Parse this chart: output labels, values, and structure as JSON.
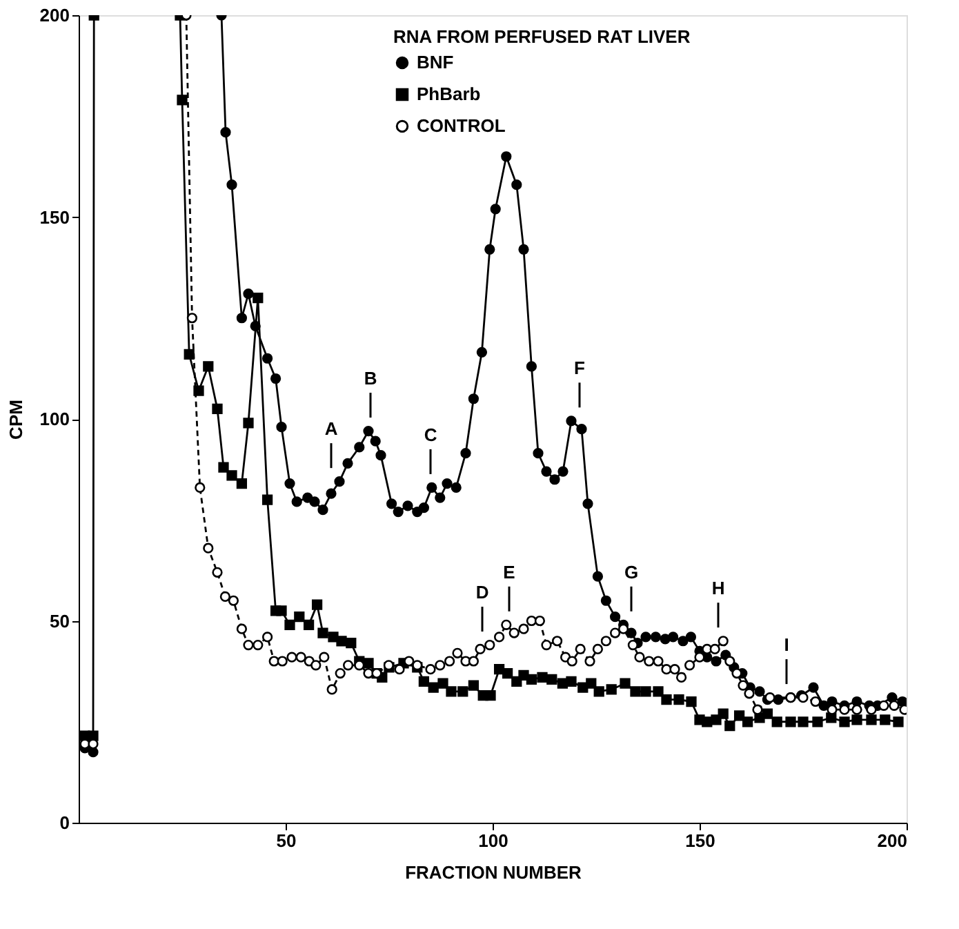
{
  "chart_data": {
    "type": "line",
    "xlabel": "FRACTION NUMBER",
    "ylabel": "CPM",
    "legend_title": "RNA FROM PERFUSED RAT LIVER",
    "legend": "top",
    "grid": false,
    "xlim": [
      0,
      200
    ],
    "xticks": [
      50,
      100,
      150,
      200
    ],
    "ylim": [
      0,
      200
    ],
    "yticks": [
      0,
      50,
      100,
      150,
      200
    ],
    "series": [
      {
        "name": "BNF",
        "color": "#000000",
        "marker": "circle",
        "line_style": "solid",
        "x": [
          1.5,
          3.5,
          20,
          34.5,
          35.5,
          37,
          39.4,
          41,
          42.7,
          45.6,
          47.6,
          49,
          51,
          52.7,
          55.3,
          57,
          59,
          61,
          63,
          65,
          67.8,
          70,
          71.7,
          73,
          75.6,
          77.2,
          79.5,
          81.8,
          83.4,
          85.3,
          87.3,
          89,
          91.2,
          93.5,
          95.4,
          97.4,
          99.3,
          100.7,
          103.3,
          105.8,
          107.5,
          109.4,
          111,
          113,
          115,
          117,
          119,
          121.5,
          123,
          125.4,
          127.4,
          129.6,
          131.6,
          133.5,
          135,
          137,
          139.4,
          141.7,
          143.6,
          146,
          147.9,
          150,
          151.8,
          154,
          156.3,
          158.3,
          160.3,
          162.2,
          164.5,
          166.4,
          169,
          172,
          174.6,
          177.5,
          180,
          182,
          185,
          188,
          191,
          193,
          196.5,
          199
        ],
        "values": [
          18.5,
          17.5,
          null,
          200,
          171,
          158,
          125,
          131,
          123,
          115,
          110,
          98,
          84,
          79.5,
          80.5,
          79.5,
          77.5,
          81.5,
          84.5,
          89,
          93,
          97,
          94.5,
          91,
          79,
          77,
          78.5,
          77,
          78,
          83,
          80.5,
          84,
          83,
          91.5,
          105,
          116.5,
          142,
          152,
          165,
          158,
          142,
          113,
          91.5,
          87,
          85,
          87,
          99.5,
          97.5,
          79,
          61,
          55,
          51,
          49,
          47,
          44.5,
          46,
          46,
          45.5,
          46,
          45,
          46,
          42.5,
          41,
          40,
          41.5,
          38.5,
          37,
          33.5,
          32.5,
          30.5,
          30.5,
          31,
          31.5,
          33.5,
          29,
          30,
          29,
          30,
          29,
          29,
          31,
          30
        ]
      },
      {
        "name": "PhBarb",
        "color": "#000000",
        "marker": "square",
        "line_style": "solid",
        "x": [
          1.5,
          3.5,
          3.7,
          14,
          24.5,
          25,
          26.7,
          29,
          31.3,
          33.5,
          35,
          37,
          39.4,
          41,
          43.3,
          45.6,
          47.6,
          49,
          51,
          53.3,
          55.6,
          57.6,
          59,
          61.5,
          63.5,
          65.8,
          67.8,
          70,
          72,
          73.3,
          75,
          78.5,
          81.8,
          83.4,
          85.7,
          88,
          90,
          92.8,
          95.4,
          97.7,
          99.5,
          101.6,
          103.6,
          105.8,
          107.5,
          109.4,
          112,
          114.3,
          116.9,
          119,
          121.8,
          123.8,
          125.7,
          128.7,
          132,
          134.5,
          137,
          140,
          142,
          145,
          148,
          150,
          151.8,
          154,
          155.7,
          157.3,
          159.6,
          161.6,
          164.5,
          166.4,
          168.7,
          172,
          175,
          178.5,
          181.8,
          185,
          188,
          191.5,
          194.8,
          198
        ],
        "values": [
          21.5,
          21.5,
          200,
          null,
          200,
          179,
          116,
          107,
          113,
          102.5,
          88,
          86,
          84,
          99,
          130,
          80,
          52.5,
          52.5,
          49,
          51,
          49,
          54,
          47,
          46,
          45,
          44.5,
          40,
          39.5,
          37,
          36,
          38.5,
          39.5,
          38.5,
          35,
          33.5,
          34.5,
          32.5,
          32.5,
          34,
          31.5,
          31.5,
          38,
          37,
          35,
          36.5,
          35.5,
          36,
          35.5,
          34.5,
          35,
          33.5,
          34.5,
          32.5,
          33,
          34.5,
          32.5,
          32.5,
          32.5,
          30.5,
          30.5,
          30,
          25.5,
          25,
          25.5,
          27,
          24,
          26.5,
          25,
          26,
          27,
          25,
          25,
          25,
          25,
          26,
          25,
          25.5,
          25.5,
          25.5,
          25
        ]
      },
      {
        "name": "CONTROL",
        "color": "#000000",
        "marker": "circle",
        "line_style": "dashed",
        "x": [
          1.5,
          3.5,
          15,
          26,
          27.4,
          29.3,
          31.3,
          33.5,
          35.4,
          37.4,
          39.4,
          41,
          43.3,
          45.6,
          47.2,
          49.2,
          51.5,
          53.7,
          55.7,
          57.3,
          59.3,
          61.2,
          63.2,
          65.1,
          67.8,
          70,
          72,
          74.9,
          77.5,
          79.8,
          81.8,
          85,
          87.3,
          89.6,
          91.5,
          93.5,
          95.4,
          97,
          99.3,
          101.6,
          103.3,
          105.2,
          107.5,
          109.4,
          111.4,
          113,
          115.6,
          117.6,
          119.2,
          121.2,
          123.5,
          125.4,
          127.4,
          129.6,
          131.6,
          133.9,
          135.5,
          137.8,
          140,
          142,
          144,
          145.6,
          147.6,
          150,
          151.8,
          153.7,
          155.7,
          157.3,
          159,
          160.5,
          162,
          164,
          167,
          172,
          175,
          178,
          182,
          185,
          188,
          191.5,
          194.5,
          197,
          199.5
        ],
        "values": [
          19.5,
          19.5,
          null,
          200,
          125,
          83,
          68,
          62,
          56,
          55,
          48,
          44,
          44,
          46,
          40,
          40,
          41,
          41,
          40,
          39,
          41,
          33,
          37,
          39,
          39,
          37,
          37,
          39,
          38,
          40,
          39,
          38,
          39,
          40,
          42,
          40,
          40,
          43,
          44,
          46,
          49,
          47,
          48,
          50,
          50,
          44,
          45,
          41,
          40,
          43,
          40,
          43,
          45,
          47,
          48,
          44,
          41,
          40,
          40,
          38,
          38,
          36,
          39,
          41,
          43,
          43,
          45,
          40,
          37,
          34,
          32,
          28,
          31,
          31,
          31,
          30,
          28,
          28,
          28,
          28,
          29,
          29,
          28
        ]
      }
    ],
    "annotations": [
      {
        "text": "A",
        "x": 61
      },
      {
        "text": "B",
        "x": 70.5
      },
      {
        "text": "C",
        "x": 85
      },
      {
        "text": "D",
        "x": 97.5
      },
      {
        "text": "E",
        "x": 104
      },
      {
        "text": "F",
        "x": 121
      },
      {
        "text": "G",
        "x": 133.5
      },
      {
        "text": "H",
        "x": 154.5
      },
      {
        "text": "I",
        "x": 171
      }
    ]
  }
}
